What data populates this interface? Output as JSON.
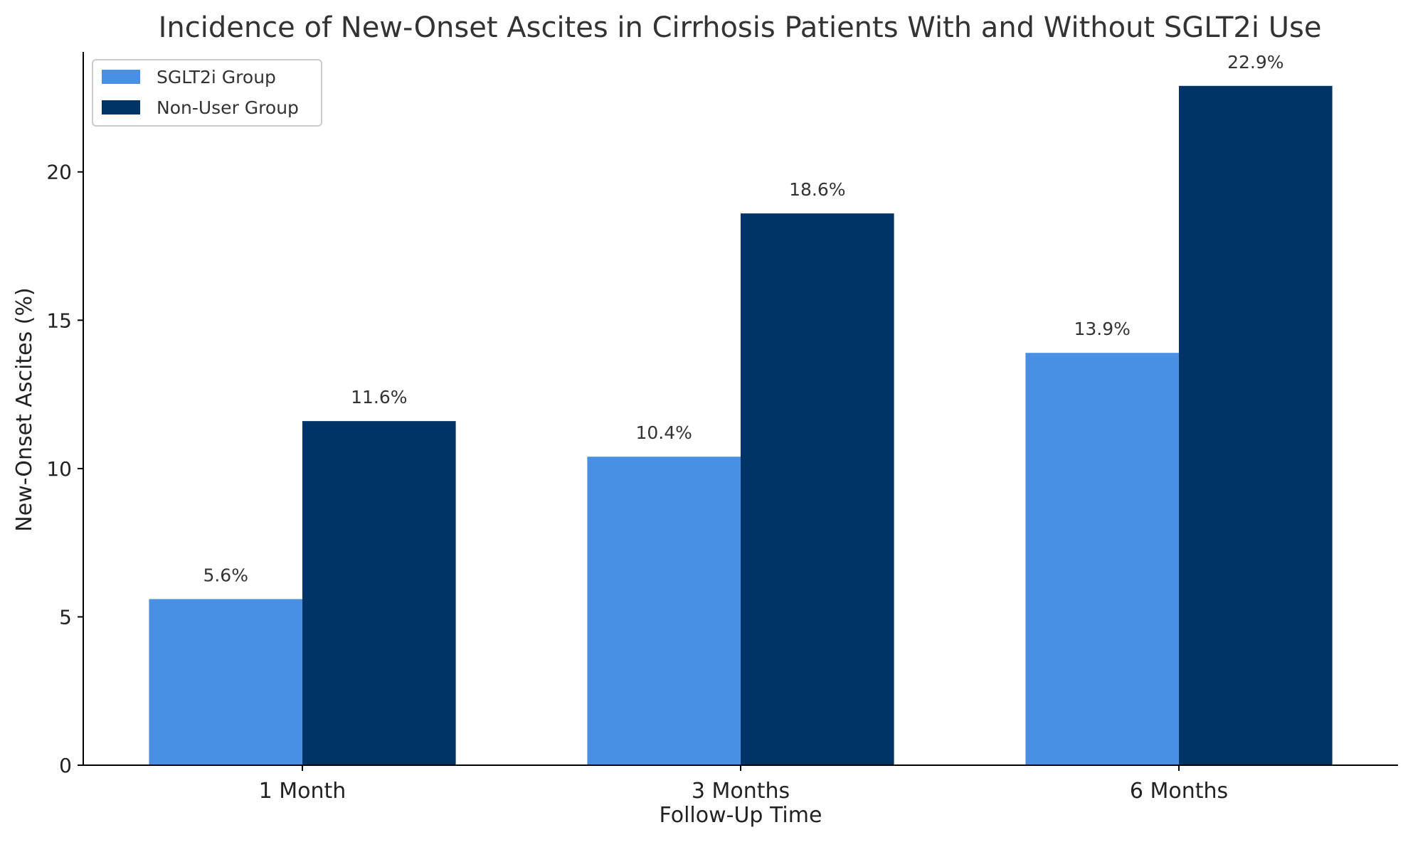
{
  "chart_data": {
    "type": "bar",
    "title": "Incidence of New-Onset Ascites in Cirrhosis Patients With and Without SGLT2i Use",
    "xlabel": "Follow-Up Time",
    "ylabel": "New-Onset Ascites (%)",
    "categories": [
      "1 Month",
      "3 Months",
      "6 Months"
    ],
    "series": [
      {
        "name": "SGLT2i Group",
        "color": "#4a90e2",
        "values": [
          5.6,
          10.4,
          13.9
        ],
        "labels": [
          "5.6%",
          "10.4%",
          "13.9%"
        ]
      },
      {
        "name": "Non-User Group",
        "color": "#003366",
        "values": [
          11.6,
          18.6,
          22.9
        ],
        "labels": [
          "11.6%",
          "18.6%",
          "22.9%"
        ]
      }
    ],
    "ylim": [
      0,
      24.045
    ],
    "yticks": [
      0,
      5,
      10,
      15,
      20
    ],
    "ytick_labels": [
      "0",
      "5",
      "10",
      "15",
      "20"
    ],
    "grid": false,
    "legend_position": "top-left"
  }
}
